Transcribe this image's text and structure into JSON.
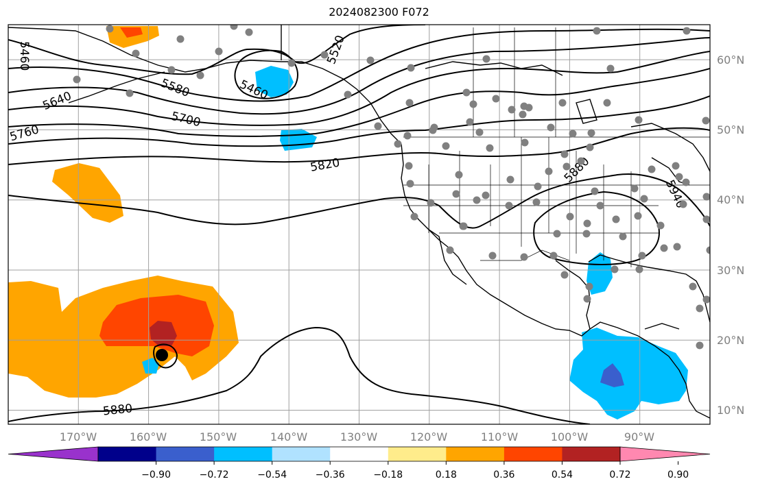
{
  "title": "2024082300 F072",
  "map": {
    "projection": "equirectangular",
    "lon_range": [
      -180,
      -80
    ],
    "lat_range": [
      8,
      65
    ],
    "lat_labels": [
      "10°N",
      "20°N",
      "30°N",
      "40°N",
      "50°N",
      "60°N"
    ],
    "lon_labels": [
      "170°W",
      "160°W",
      "150°W",
      "140°W",
      "130°W",
      "120°W",
      "110°W",
      "100°W",
      "90°W"
    ],
    "gridlines": true,
    "coastline_color": "#000000",
    "grid_color": "#a0a0a0"
  },
  "contours": {
    "labels": [
      "5460",
      "5460",
      "5580",
      "5640",
      "5700",
      "5760",
      "5820",
      "5880",
      "5880",
      "5940",
      "5520"
    ]
  },
  "colorbar": {
    "tick_labels": [
      "−0.90",
      "−0.72",
      "−0.54",
      "−0.36",
      "−0.18",
      "0.18",
      "0.36",
      "0.54",
      "0.72",
      "0.90"
    ],
    "colors": [
      "#9932cc",
      "#00008b",
      "#3a5fcd",
      "#00bfff",
      "#b0e2ff",
      "#ffffff",
      "#ffec8b",
      "#ffa500",
      "#ff4500",
      "#b22222",
      "#ff88b0"
    ],
    "extend": "both"
  },
  "stations": {
    "color": "#808080"
  }
}
